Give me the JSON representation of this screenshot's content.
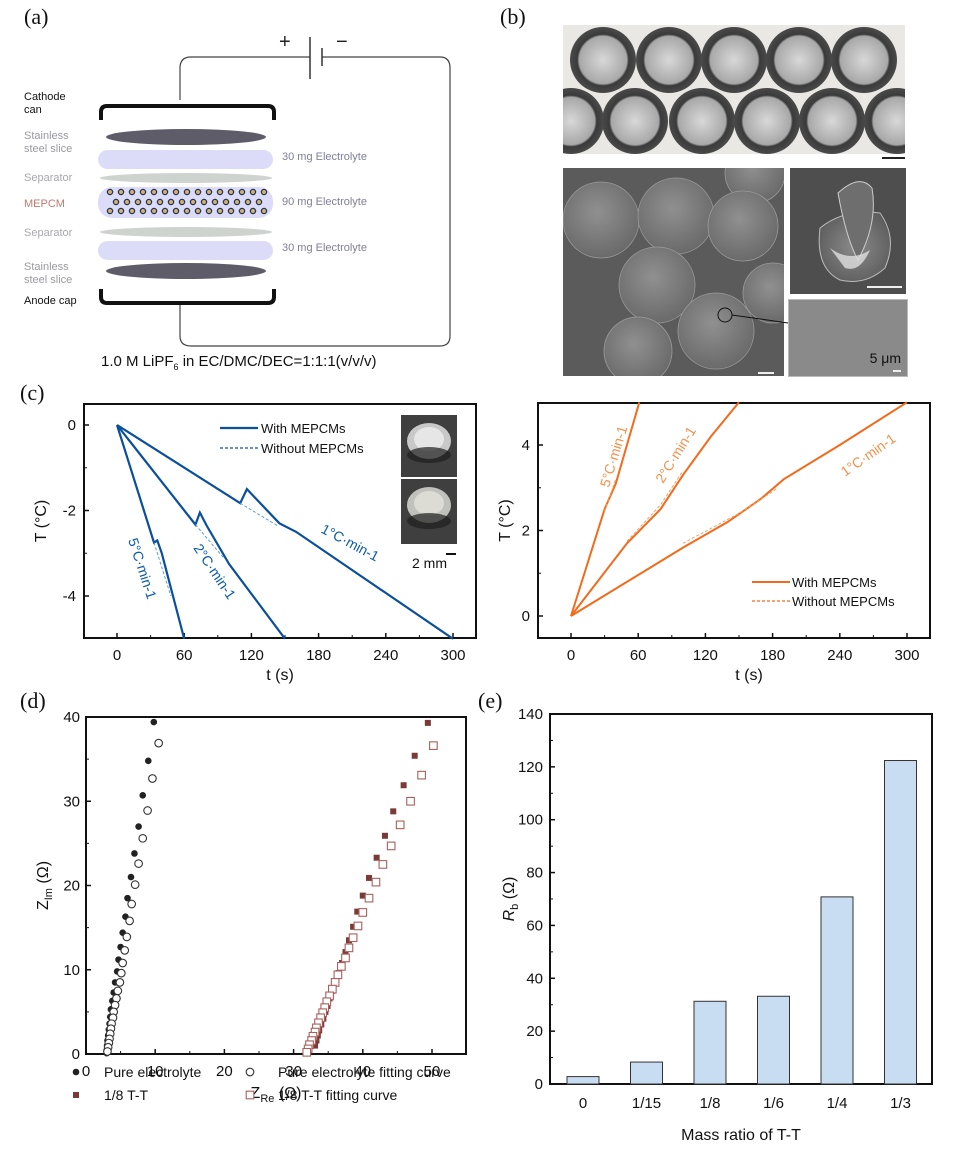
{
  "panels": {
    "a": {
      "label": "(a)",
      "battery": {
        "plus": "+",
        "minus": "−"
      },
      "layers": {
        "cathode": "Cathode can",
        "steel_top": "Stainless steel slice",
        "separator_top": "Separator",
        "mepcm": "MEPCM",
        "separator_bottom": "Separator",
        "steel_bottom": "Stainless steel slice",
        "anode": "Anode cap"
      },
      "electrolyte": [
        "30 mg Electrolyte",
        "90 mg Electrolyte",
        "30 mg Electrolyte"
      ],
      "caption_main": "1.0 M LiPF",
      "caption_sub": "6",
      "caption_rest": " in EC/DMC/DEC=1:1:1(v/v/v)",
      "colors": {
        "steel": "#5e5c68",
        "electrolyte": "#dcdcf8",
        "separator": "#cfd3cf",
        "mepcm_text": "#c0796f",
        "gray_text": "#9a9aa0",
        "electrolyte_text": "#7f7f98"
      }
    },
    "b": {
      "label": "(b)",
      "scale_text": "5 μm"
    },
    "c": {
      "label": "(c)",
      "inset_scale": "2 mm"
    },
    "d": {
      "label": "(d)"
    },
    "e": {
      "label": "(e)"
    }
  },
  "chart_data": [
    {
      "id": "c-cooling",
      "type": "line",
      "xlabel": "t (s)",
      "ylabel": "T (°C)",
      "xlim": [
        -30,
        320
      ],
      "ylim": [
        -5,
        0.5
      ],
      "xticks": [
        0,
        60,
        120,
        180,
        240,
        300
      ],
      "yticks": [
        0,
        -2,
        -4
      ],
      "legend": {
        "position": "top-center",
        "entries": [
          "With MEPCMs",
          "Without MEPCMs"
        ]
      },
      "color": "#0a4f9c",
      "series": [
        {
          "name": "5°C·min-1 With MEPCMs",
          "style": "solid",
          "points": [
            [
              0,
              0
            ],
            [
              33,
              -2.75
            ],
            [
              36,
              -2.7
            ],
            [
              40,
              -3.0
            ],
            [
              60,
              -5
            ]
          ]
        },
        {
          "name": "5°C·min-1 Without MEPCMs",
          "style": "dashed",
          "points": [
            [
              33,
              -2.75
            ],
            [
              48,
              -4.0
            ]
          ]
        },
        {
          "name": "2°C·min-1 With MEPCMs",
          "style": "solid",
          "points": [
            [
              0,
              0
            ],
            [
              70,
              -2.33
            ],
            [
              74,
              -2.05
            ],
            [
              80,
              -2.35
            ],
            [
              100,
              -3.25
            ],
            [
              150,
              -5
            ]
          ]
        },
        {
          "name": "2°C·min-1 Without MEPCMs",
          "style": "dashed",
          "points": [
            [
              70,
              -2.33
            ],
            [
              95,
              -3.1
            ]
          ]
        },
        {
          "name": "1°C·min-1 With MEPCMs",
          "style": "solid",
          "points": [
            [
              0,
              0
            ],
            [
              110,
              -1.83
            ],
            [
              116,
              -1.5
            ],
            [
              125,
              -1.75
            ],
            [
              145,
              -2.3
            ],
            [
              160,
              -2.5
            ],
            [
              300,
              -5
            ]
          ]
        },
        {
          "name": "1°C·min-1 Without MEPCMs",
          "style": "dashed",
          "points": [
            [
              110,
              -1.83
            ],
            [
              143,
              -2.35
            ]
          ]
        }
      ],
      "annotations": [
        "5°C·min-1",
        "2°C·min-1",
        "1°C·min-1"
      ]
    },
    {
      "id": "c-heating",
      "type": "line",
      "xlabel": "t (s)",
      "ylabel": "T (°C)",
      "xlim": [
        -30,
        320
      ],
      "ylim": [
        -0.5,
        5
      ],
      "xticks": [
        0,
        60,
        120,
        180,
        240,
        300
      ],
      "yticks": [
        0,
        2,
        4
      ],
      "legend": {
        "position": "bottom-right",
        "entries": [
          "With MEPCMs",
          "Without MEPCMs"
        ]
      },
      "color": "#f26a1b",
      "series": [
        {
          "name": "5°C·min-1 With MEPCMs",
          "style": "solid",
          "points": [
            [
              0,
              0
            ],
            [
              30,
              2.5
            ],
            [
              40,
              3.1
            ],
            [
              61,
              5
            ]
          ]
        },
        {
          "name": "5°C·min-1 Without MEPCMs",
          "style": "dashed",
          "points": [
            [
              30,
              2.45
            ],
            [
              40,
              3.2
            ]
          ]
        },
        {
          "name": "2°C·min-1 With MEPCMs",
          "style": "solid",
          "points": [
            [
              0,
              0
            ],
            [
              50,
              1.7
            ],
            [
              80,
              2.5
            ],
            [
              100,
              3.3
            ],
            [
              125,
              4.2
            ],
            [
              150,
              5
            ]
          ]
        },
        {
          "name": "2°C·min-1 Without MEPCMs",
          "style": "dashed",
          "points": [
            [
              50,
              1.75
            ],
            [
              80,
              2.6
            ],
            [
              100,
              3.4
            ]
          ]
        },
        {
          "name": "1°C·min-1 With MEPCMs",
          "style": "solid",
          "points": [
            [
              0,
              0
            ],
            [
              100,
              1.6
            ],
            [
              140,
              2.2
            ],
            [
              170,
              2.75
            ],
            [
              190,
              3.2
            ],
            [
              240,
              4.0
            ],
            [
              300,
              5
            ]
          ]
        },
        {
          "name": "1°C·min-1 Without MEPCMs",
          "style": "dashed",
          "points": [
            [
              100,
              1.7
            ],
            [
              150,
              2.4
            ],
            [
              185,
              3.0
            ]
          ]
        }
      ],
      "annotations": [
        "5°C·min-1",
        "2°C·min-1",
        "1°C·min-1"
      ]
    },
    {
      "id": "d-nyquist",
      "type": "scatter",
      "xlabel": "Z_Re (Ω)",
      "ylabel": "Z_Im (Ω)",
      "xlim": [
        0,
        55
      ],
      "ylim": [
        0,
        40
      ],
      "xticks": [
        0,
        10,
        20,
        30,
        40,
        50
      ],
      "yticks": [
        0,
        10,
        20,
        30,
        40
      ],
      "legend": {
        "position": "bottom",
        "entries": [
          "Pure electrolyte",
          "Pure electrolyte fitting curve",
          "1/8 T-T",
          "1/8 T-T fitting curve"
        ]
      },
      "series": [
        {
          "name": "Pure electrolyte",
          "marker": "filled-circle",
          "color": "#222222",
          "points": [
            [
              9.8,
              39.4
            ],
            [
              9.0,
              34.8
            ],
            [
              8.2,
              30.7
            ],
            [
              7.6,
              27.0
            ],
            [
              7.0,
              23.8
            ],
            [
              6.5,
              21.0
            ],
            [
              6.0,
              18.5
            ],
            [
              5.7,
              16.3
            ],
            [
              5.3,
              14.4
            ],
            [
              5.0,
              12.7
            ],
            [
              4.7,
              11.2
            ],
            [
              4.5,
              9.8
            ],
            [
              4.2,
              8.5
            ],
            [
              4.0,
              7.3
            ],
            [
              3.8,
              6.3
            ],
            [
              3.6,
              5.3
            ],
            [
              3.5,
              4.4
            ],
            [
              3.4,
              3.6
            ],
            [
              3.3,
              2.9
            ],
            [
              3.2,
              2.2
            ],
            [
              3.1,
              1.6
            ],
            [
              3.05,
              1.0
            ],
            [
              3.0,
              0.5
            ],
            [
              3.0,
              0.1
            ]
          ]
        },
        {
          "name": "Pure electrolyte fitting curve",
          "marker": "open-circle",
          "color": "#333333",
          "points": [
            [
              10.5,
              36.9
            ],
            [
              9.6,
              32.7
            ],
            [
              8.9,
              28.9
            ],
            [
              8.2,
              25.6
            ],
            [
              7.6,
              22.6
            ],
            [
              7.1,
              20.1
            ],
            [
              6.6,
              17.8
            ],
            [
              6.3,
              15.8
            ],
            [
              5.9,
              13.9
            ],
            [
              5.6,
              12.3
            ],
            [
              5.3,
              10.8
            ],
            [
              5.1,
              9.6
            ],
            [
              4.9,
              8.5
            ],
            [
              4.6,
              7.5
            ],
            [
              4.4,
              6.6
            ],
            [
              4.2,
              5.8
            ],
            [
              4.0,
              5.0
            ],
            [
              3.9,
              4.3
            ],
            [
              3.7,
              3.6
            ],
            [
              3.6,
              3.0
            ],
            [
              3.5,
              2.4
            ],
            [
              3.4,
              1.8
            ],
            [
              3.3,
              1.3
            ],
            [
              3.2,
              0.8
            ],
            [
              3.1,
              0.3
            ]
          ]
        },
        {
          "name": "1/8 T-T",
          "marker": "filled-square",
          "color": "#7a3a38",
          "points": [
            [
              49.4,
              39.3
            ],
            [
              47.5,
              35.4
            ],
            [
              45.9,
              31.9
            ],
            [
              44.4,
              28.8
            ],
            [
              43.2,
              25.9
            ],
            [
              42.0,
              23.3
            ],
            [
              40.9,
              20.9
            ],
            [
              40.0,
              18.8
            ],
            [
              39.2,
              16.9
            ],
            [
              38.6,
              15.1
            ],
            [
              38.0,
              13.5
            ],
            [
              37.5,
              12.1
            ],
            [
              37.0,
              10.8
            ],
            [
              36.5,
              9.6
            ],
            [
              36.0,
              8.5
            ],
            [
              35.6,
              7.5
            ],
            [
              35.2,
              6.6
            ],
            [
              34.9,
              5.7
            ],
            [
              34.6,
              5.0
            ],
            [
              34.3,
              4.2
            ],
            [
              34.0,
              3.5
            ],
            [
              33.7,
              2.8
            ],
            [
              33.5,
              2.2
            ],
            [
              33.3,
              1.6
            ],
            [
              33.1,
              1.0
            ]
          ]
        },
        {
          "name": "1/8 T-T fitting curve",
          "marker": "open-square",
          "color": "#a9605c",
          "points": [
            [
              50.2,
              36.6
            ],
            [
              48.5,
              33.1
            ],
            [
              46.9,
              30.0
            ],
            [
              45.4,
              27.2
            ],
            [
              44.1,
              24.7
            ],
            [
              42.9,
              22.5
            ],
            [
              41.9,
              20.4
            ],
            [
              40.9,
              18.5
            ],
            [
              40.0,
              16.8
            ],
            [
              39.3,
              15.2
            ],
            [
              38.6,
              13.8
            ],
            [
              38.0,
              12.6
            ],
            [
              37.5,
              11.4
            ],
            [
              36.9,
              10.4
            ],
            [
              36.4,
              9.4
            ],
            [
              36.0,
              8.5
            ],
            [
              35.6,
              7.7
            ],
            [
              35.2,
              6.9
            ],
            [
              34.8,
              6.2
            ],
            [
              34.5,
              5.5
            ],
            [
              34.2,
              4.9
            ],
            [
              33.9,
              4.3
            ],
            [
              33.6,
              3.7
            ],
            [
              33.3,
              3.1
            ],
            [
              33.1,
              2.6
            ],
            [
              32.8,
              2.1
            ],
            [
              32.6,
              1.6
            ],
            [
              32.3,
              1.1
            ],
            [
              32.1,
              0.6
            ],
            [
              31.9,
              0.2
            ]
          ]
        }
      ]
    },
    {
      "id": "e-bar",
      "type": "bar",
      "xlabel": "Mass ratio of T-T",
      "ylabel": "R_b (Ω)",
      "ylim": [
        0,
        140
      ],
      "yticks": [
        0,
        20,
        40,
        60,
        80,
        100,
        120,
        140
      ],
      "categories": [
        "0",
        "1/15",
        "1/8",
        "1/6",
        "1/4",
        "1/3"
      ],
      "values": [
        2.8,
        8.3,
        31.3,
        33.2,
        70.8,
        122.4
      ],
      "color": "#c8dcf2",
      "edge_color": "#333333"
    }
  ]
}
